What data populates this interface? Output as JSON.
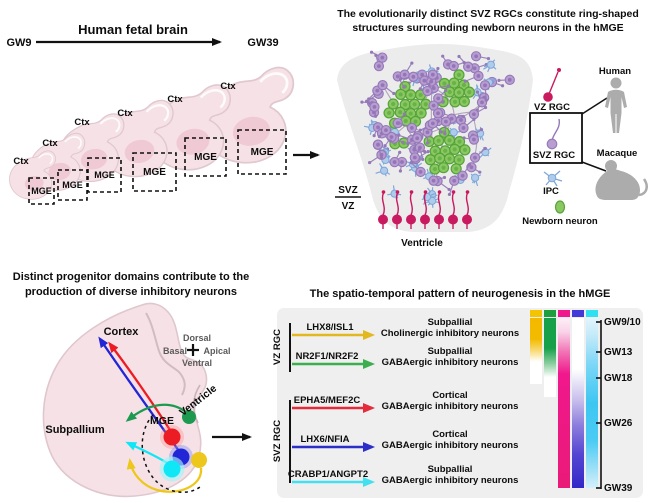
{
  "palette": {
    "brain_pink": "#F6E2E6",
    "mge_pink": "#EFC9D3",
    "tissue_gray": "#ECECEC",
    "panel_gray": "#EFEFEF",
    "vz_rgc": "#C9195F",
    "svz_rgc": "#B79DD0",
    "svz_rgc_edge": "#9478B8",
    "ipc": "#AECBEA",
    "ipc_edge": "#7FA6DA",
    "newborn_neuron": "#8BC763",
    "newborn_edge": "#55A438",
    "silhouette": "#ACACAC",
    "strand": "#A193AE"
  },
  "top_left": {
    "title": "Human fetal brain",
    "start": "GW9",
    "end": "GW39",
    "ctx_label": "Ctx",
    "mge_label": "MGE"
  },
  "top_right": {
    "title_line1": "The evolutionarily distinct SVZ RGCs constitute ring-shaped",
    "title_line2": "structures surrounding newborn neurons in the hMGE",
    "svz": "SVZ",
    "vz": "VZ",
    "ventricle": "Ventricle",
    "legend": {
      "vz_rgc": "VZ RGC",
      "svz_rgc": "SVZ RGC",
      "ipc": "IPC",
      "newborn": "Newborn neuron",
      "human": "Human",
      "macaque": "Macaque"
    }
  },
  "bottom_left": {
    "title_line1": "Distinct progenitor domains contribute to the",
    "title_line2": "production of diverse inhibitory neurons",
    "cortex": "Cortex",
    "subpallium": "Subpallium",
    "mge": "MGE",
    "ventricle": "Ventricle",
    "compass": {
      "dorsal": "Dorsal",
      "basal": "Basal",
      "apical": "Apical",
      "ventral": "Ventral"
    },
    "dots": {
      "green": "#1D9A50",
      "red": "#EC1C24",
      "blue": "#2126D6",
      "cyan": "#0FE7F7",
      "yellow": "#EEC71D"
    }
  },
  "bottom_right": {
    "title": "The spatio-temporal pattern of neurogenesis in the hMGE",
    "groups": [
      {
        "label": "VZ RGC"
      },
      {
        "label": "SVZ RGC"
      }
    ],
    "rows": [
      {
        "gene": "LHX8/ISL1",
        "target_line1": "Subpallial",
        "target_line2": "Cholinergic inhibitory neurons",
        "arrow_color": "#E3B71E",
        "bar_color": "#F5C400"
      },
      {
        "gene": "NR2F1/NR2F2",
        "target_line1": "Subpallial",
        "target_line2": "GABAergic inhibitory neurons",
        "arrow_color": "#3BAE4E",
        "bar_color": "#1F9E40"
      },
      {
        "gene": "EPHA5/MEF2C",
        "target_line1": "Cortical",
        "target_line2": "GABAergic inhibitory neurons",
        "arrow_color": "#E32B3C",
        "bar_color": "#F0188C"
      },
      {
        "gene": "LHX6/NFIA",
        "target_line1": "Cortical",
        "target_line2": "GABAergic inhibitory neurons",
        "arrow_color": "#2B2FC8",
        "bar_color": "#4438D8"
      },
      {
        "gene": "CRABP1/ANGPT2",
        "target_line1": "Subpallial",
        "target_line2": "GABAergic inhibitory neurons",
        "arrow_color": "#45E0F0",
        "bar_color": "#30E0F0"
      }
    ],
    "timeline": [
      "GW9/10",
      "GW13",
      "GW18",
      "GW26",
      "GW39"
    ]
  }
}
